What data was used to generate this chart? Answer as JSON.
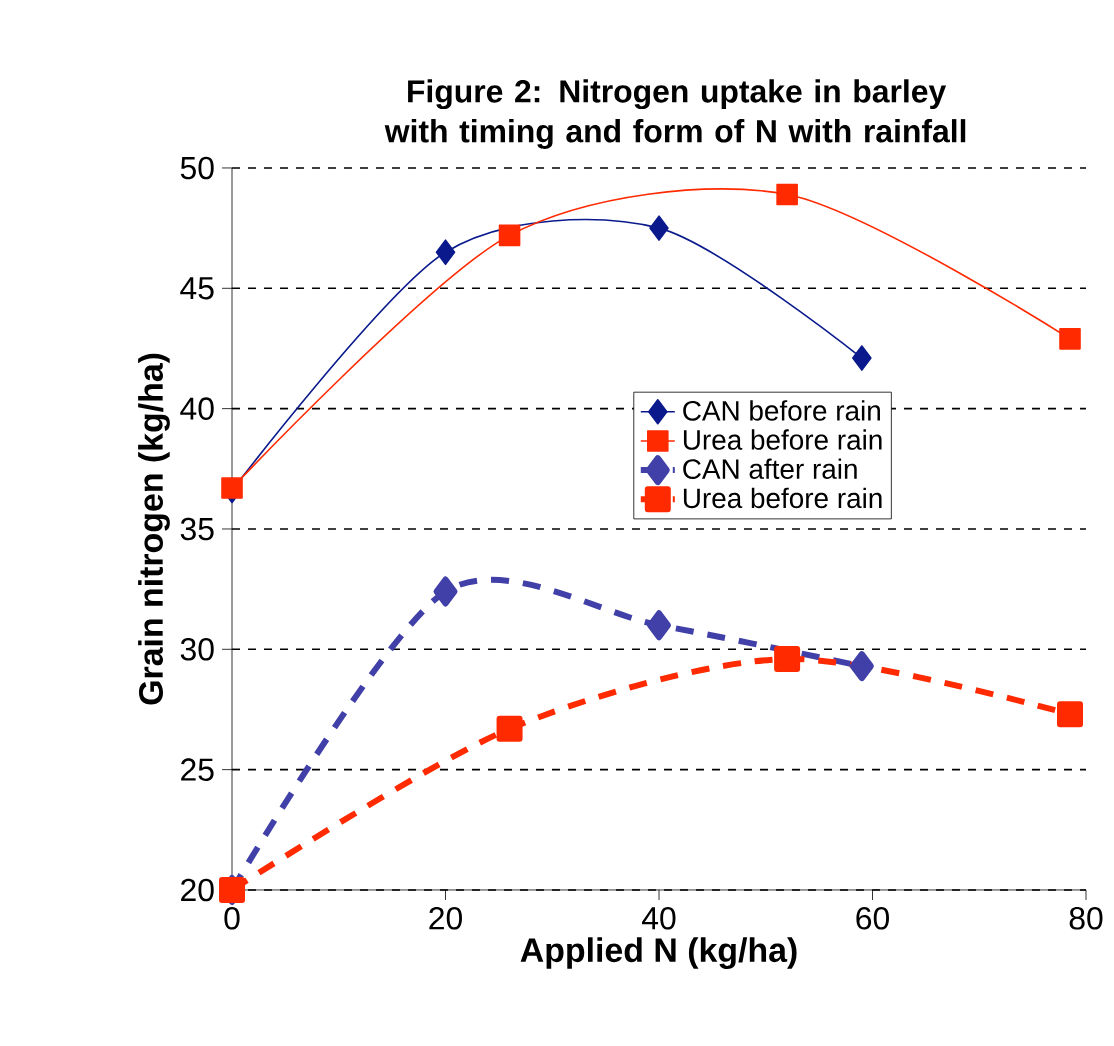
{
  "chart_data": {
    "type": "line",
    "title": "Figure 2: Nitrogen uptake in barley with timing and form of N with rainfall",
    "xlabel": "Applied N (kg/ha)",
    "ylabel": "Grain nitrogen (kg/ha)",
    "xlim": [
      0,
      80
    ],
    "ylim": [
      20,
      50
    ],
    "xticks": [
      0,
      20,
      40,
      60,
      80
    ],
    "yticks": [
      20,
      25,
      30,
      35,
      40,
      45,
      50
    ],
    "grid": "y",
    "legend": "right",
    "series": [
      {
        "name": "CAN before rain",
        "color": "#0a1a8c",
        "x": [
          0,
          20,
          40,
          59
        ],
        "values": [
          36.6,
          46.5,
          47.5,
          42.1
        ],
        "marker": "diamond",
        "line_style": "solid"
      },
      {
        "name": "Urea before rain",
        "color": "#ff2a00",
        "x": [
          0,
          26,
          52,
          78.5
        ],
        "values": [
          36.7,
          47.2,
          48.9,
          42.9
        ],
        "marker": "square",
        "line_style": "solid"
      },
      {
        "name": "CAN after rain",
        "color": "#4040a8",
        "x": [
          0,
          20,
          40,
          59
        ],
        "values": [
          20,
          32.4,
          31.0,
          29.3
        ],
        "marker": "diamond",
        "line_style": "dashed"
      },
      {
        "name": "Urea before rain",
        "color": "#ff2a00",
        "x": [
          0,
          26,
          52,
          78.5
        ],
        "values": [
          20,
          26.7,
          29.6,
          27.3
        ],
        "marker": "square",
        "line_style": "dashed"
      }
    ]
  }
}
